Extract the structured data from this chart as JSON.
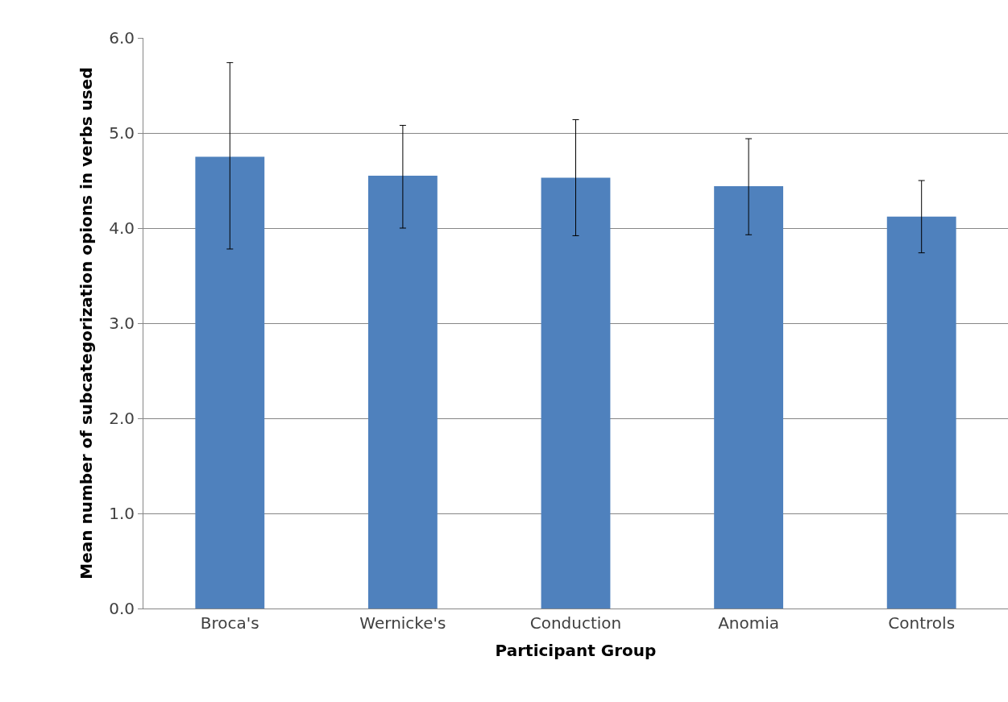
{
  "chart_data": {
    "type": "bar",
    "xlabel": "Participant Group",
    "ylabel": "Mean number of subcategorization opions in verbs used",
    "categories": [
      "Broca's",
      "Wernicke's",
      "Conduction",
      "Anomia",
      "Controls"
    ],
    "values": [
      4.75,
      4.55,
      4.53,
      4.44,
      4.12
    ],
    "errors": [
      [
        3.78,
        5.74
      ],
      [
        4.0,
        5.08
      ],
      [
        3.92,
        5.14
      ],
      [
        3.93,
        4.94
      ],
      [
        3.74,
        4.5
      ]
    ],
    "color": "#4f81bd",
    "ylim": [
      0,
      6
    ],
    "yticks": [
      {
        "value": 0,
        "label": "0.0"
      },
      {
        "value": 1,
        "label": "1.0"
      },
      {
        "value": 2,
        "label": "2.0"
      },
      {
        "value": 3,
        "label": "3.0"
      },
      {
        "value": 4,
        "label": "4.0"
      },
      {
        "value": 5,
        "label": "5.0"
      },
      {
        "value": 6,
        "label": "6.0"
      }
    ],
    "grid": "y",
    "legend": false
  }
}
